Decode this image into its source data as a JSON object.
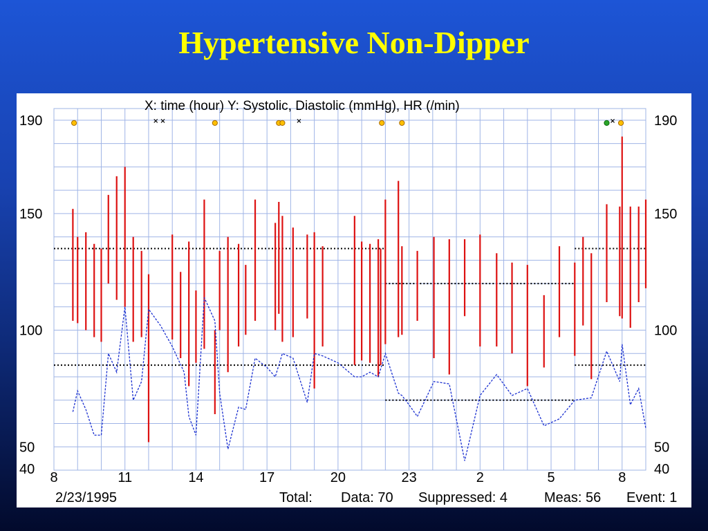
{
  "slide": {
    "title": "Hypertensive Non-Dipper"
  },
  "chart_data": {
    "type": "ambulatory_bp_plot",
    "title": "X: time (hour)  Y: Systolic, Diastolic (mmHg), HR (/min)",
    "xlabel": "time (hour)",
    "ylabel": "Systolic, Diastolic (mmHg), HR (/min)",
    "x_tick_labels": [
      "8",
      "11",
      "14",
      "17",
      "20",
      "23",
      "2",
      "5",
      "8"
    ],
    "x_range_hours": [
      8,
      33
    ],
    "y_tick_labels_left": [
      "190",
      "150",
      "100",
      "50",
      "40"
    ],
    "y_tick_labels_right": [
      "190",
      "150",
      "100",
      "50",
      "40"
    ],
    "y_ticks": [
      190,
      150,
      100,
      50,
      40
    ],
    "ylim": [
      40,
      195
    ],
    "grid": true,
    "date": "2/23/1995",
    "footer": {
      "total_label": "Total:",
      "data_label": "Data: 70",
      "suppressed_label": "Suppressed: 4",
      "meas_label": "Meas: 56",
      "event_label": "Event: 1"
    },
    "colors": {
      "bp_bars": "#dd1111",
      "hr_line": "#1a2fd0",
      "thresholds": "#000000",
      "markers": "#ffc000",
      "grid": "#9fb4e6"
    },
    "thresholds": [
      {
        "name": "systolic day",
        "value": 135,
        "x": [
          8,
          22
        ]
      },
      {
        "name": "diastolic day",
        "value": 85,
        "x": [
          8,
          22
        ]
      },
      {
        "name": "systolic night",
        "value": 120,
        "x": [
          22,
          30
        ]
      },
      {
        "name": "diastolic night",
        "value": 70,
        "x": [
          22,
          30
        ]
      },
      {
        "name": "systolic day",
        "value": 135,
        "x": [
          30,
          33
        ]
      },
      {
        "name": "diastolic day",
        "value": 85,
        "x": [
          30,
          33
        ]
      }
    ],
    "bp_series": [
      {
        "t": 8.8,
        "sys": 152,
        "dia": 104
      },
      {
        "t": 9.0,
        "sys": 140,
        "dia": 103
      },
      {
        "t": 9.35,
        "sys": 142,
        "dia": 100
      },
      {
        "t": 9.7,
        "sys": 137,
        "dia": 97
      },
      {
        "t": 10.0,
        "sys": 135,
        "dia": 95
      },
      {
        "t": 10.3,
        "sys": 158,
        "dia": 120
      },
      {
        "t": 10.65,
        "sys": 166,
        "dia": 113
      },
      {
        "t": 11.0,
        "sys": 170,
        "dia": 110
      },
      {
        "t": 11.35,
        "sys": 140,
        "dia": 95
      },
      {
        "t": 11.7,
        "sys": 134,
        "dia": 97
      },
      {
        "t": 12.0,
        "sys": 124,
        "dia": 52
      },
      {
        "t": 13.0,
        "sys": 141,
        "dia": 96
      },
      {
        "t": 13.35,
        "sys": 125,
        "dia": 88
      },
      {
        "t": 13.7,
        "sys": 138,
        "dia": 76
      },
      {
        "t": 14.0,
        "sys": 117,
        "dia": 86
      },
      {
        "t": 14.35,
        "sys": 156,
        "dia": 92
      },
      {
        "t": 14.8,
        "sys": 100,
        "dia": 64
      },
      {
        "t": 15.0,
        "sys": 134,
        "dia": 100
      },
      {
        "t": 15.35,
        "sys": 140,
        "dia": 82
      },
      {
        "t": 15.8,
        "sys": 137,
        "dia": 93
      },
      {
        "t": 16.1,
        "sys": 128,
        "dia": 98
      },
      {
        "t": 16.5,
        "sys": 156,
        "dia": 104
      },
      {
        "t": 17.35,
        "sys": 146,
        "dia": 100
      },
      {
        "t": 17.5,
        "sys": 155,
        "dia": 107
      },
      {
        "t": 17.65,
        "sys": 149,
        "dia": 95
      },
      {
        "t": 18.1,
        "sys": 144,
        "dia": 97
      },
      {
        "t": 18.7,
        "sys": 141,
        "dia": 105
      },
      {
        "t": 19.0,
        "sys": 142,
        "dia": 75
      },
      {
        "t": 19.35,
        "sys": 136,
        "dia": 93
      },
      {
        "t": 20.7,
        "sys": 149,
        "dia": 85
      },
      {
        "t": 21.0,
        "sys": 138,
        "dia": 87
      },
      {
        "t": 21.35,
        "sys": 137,
        "dia": 86
      },
      {
        "t": 21.7,
        "sys": 139,
        "dia": 80
      },
      {
        "t": 21.8,
        "sys": 135,
        "dia": 85
      },
      {
        "t": 22.0,
        "sys": 156,
        "dia": 94
      },
      {
        "t": 22.55,
        "sys": 164,
        "dia": 97
      },
      {
        "t": 22.7,
        "sys": 136,
        "dia": 98
      },
      {
        "t": 23.35,
        "sys": 134,
        "dia": 104
      },
      {
        "t": 24.05,
        "sys": 140,
        "dia": 88
      },
      {
        "t": 24.7,
        "sys": 139,
        "dia": 81
      },
      {
        "t": 25.35,
        "sys": 139,
        "dia": 106
      },
      {
        "t": 26.0,
        "sys": 141,
        "dia": 93
      },
      {
        "t": 26.7,
        "sys": 133,
        "dia": 93
      },
      {
        "t": 27.35,
        "sys": 129,
        "dia": 90
      },
      {
        "t": 28.0,
        "sys": 128,
        "dia": 76
      },
      {
        "t": 28.7,
        "sys": 115,
        "dia": 84
      },
      {
        "t": 29.35,
        "sys": 136,
        "dia": 97
      },
      {
        "t": 30.0,
        "sys": 129,
        "dia": 89
      },
      {
        "t": 30.35,
        "sys": 140,
        "dia": 102
      },
      {
        "t": 30.7,
        "sys": 133,
        "dia": 79
      },
      {
        "t": 31.35,
        "sys": 154,
        "dia": 112
      },
      {
        "t": 31.9,
        "sys": 153,
        "dia": 106
      },
      {
        "t": 32.0,
        "sys": 183,
        "dia": 105
      },
      {
        "t": 32.35,
        "sys": 153,
        "dia": 101
      },
      {
        "t": 32.7,
        "sys": 153,
        "dia": 112
      },
      {
        "t": 33.0,
        "sys": 156,
        "dia": 118
      }
    ],
    "hr_series": [
      {
        "t": 8.8,
        "hr": 65
      },
      {
        "t": 9.0,
        "hr": 74
      },
      {
        "t": 9.35,
        "hr": 66
      },
      {
        "t": 9.7,
        "hr": 55
      },
      {
        "t": 10.0,
        "hr": 55
      },
      {
        "t": 10.3,
        "hr": 90
      },
      {
        "t": 10.65,
        "hr": 82
      },
      {
        "t": 11.0,
        "hr": 110
      },
      {
        "t": 11.35,
        "hr": 70
      },
      {
        "t": 11.7,
        "hr": 78
      },
      {
        "t": 12.0,
        "hr": 109
      },
      {
        "t": 12.5,
        "hr": 102
      },
      {
        "t": 13.0,
        "hr": 93
      },
      {
        "t": 13.5,
        "hr": 82
      },
      {
        "t": 13.7,
        "hr": 63
      },
      {
        "t": 14.0,
        "hr": 55
      },
      {
        "t": 14.35,
        "hr": 114
      },
      {
        "t": 14.8,
        "hr": 104
      },
      {
        "t": 15.0,
        "hr": 73
      },
      {
        "t": 15.35,
        "hr": 49
      },
      {
        "t": 15.8,
        "hr": 67
      },
      {
        "t": 16.1,
        "hr": 66
      },
      {
        "t": 16.5,
        "hr": 88
      },
      {
        "t": 17.0,
        "hr": 84
      },
      {
        "t": 17.35,
        "hr": 80
      },
      {
        "t": 17.65,
        "hr": 90
      },
      {
        "t": 18.1,
        "hr": 88
      },
      {
        "t": 18.7,
        "hr": 69
      },
      {
        "t": 19.0,
        "hr": 90
      },
      {
        "t": 19.35,
        "hr": 89
      },
      {
        "t": 20.0,
        "hr": 86
      },
      {
        "t": 20.7,
        "hr": 80
      },
      {
        "t": 21.0,
        "hr": 80
      },
      {
        "t": 21.35,
        "hr": 82
      },
      {
        "t": 21.7,
        "hr": 80
      },
      {
        "t": 22.0,
        "hr": 90
      },
      {
        "t": 22.55,
        "hr": 73
      },
      {
        "t": 22.7,
        "hr": 72
      },
      {
        "t": 23.0,
        "hr": 68
      },
      {
        "t": 23.35,
        "hr": 63
      },
      {
        "t": 24.05,
        "hr": 78
      },
      {
        "t": 24.7,
        "hr": 77
      },
      {
        "t": 25.35,
        "hr": 44
      },
      {
        "t": 26.0,
        "hr": 72
      },
      {
        "t": 26.7,
        "hr": 81
      },
      {
        "t": 27.35,
        "hr": 72
      },
      {
        "t": 28.0,
        "hr": 75
      },
      {
        "t": 28.7,
        "hr": 59
      },
      {
        "t": 29.35,
        "hr": 62
      },
      {
        "t": 30.0,
        "hr": 70
      },
      {
        "t": 30.7,
        "hr": 71
      },
      {
        "t": 31.35,
        "hr": 91
      },
      {
        "t": 31.9,
        "hr": 78
      },
      {
        "t": 32.0,
        "hr": 94
      },
      {
        "t": 32.35,
        "hr": 68
      },
      {
        "t": 32.7,
        "hr": 75
      },
      {
        "t": 33.0,
        "hr": 58
      }
    ],
    "event_markers": [
      {
        "t": 8.85,
        "kind": "circle"
      },
      {
        "t": 14.8,
        "kind": "circle"
      },
      {
        "t": 17.5,
        "kind": "circle"
      },
      {
        "t": 17.65,
        "kind": "circle"
      },
      {
        "t": 21.85,
        "kind": "circle"
      },
      {
        "t": 22.7,
        "kind": "circle"
      },
      {
        "t": 31.95,
        "kind": "circle"
      },
      {
        "t": 31.35,
        "kind": "green"
      },
      {
        "t": 12.3,
        "kind": "x"
      },
      {
        "t": 12.6,
        "kind": "x"
      },
      {
        "t": 18.35,
        "kind": "x"
      },
      {
        "t": 31.6,
        "kind": "x"
      }
    ]
  }
}
